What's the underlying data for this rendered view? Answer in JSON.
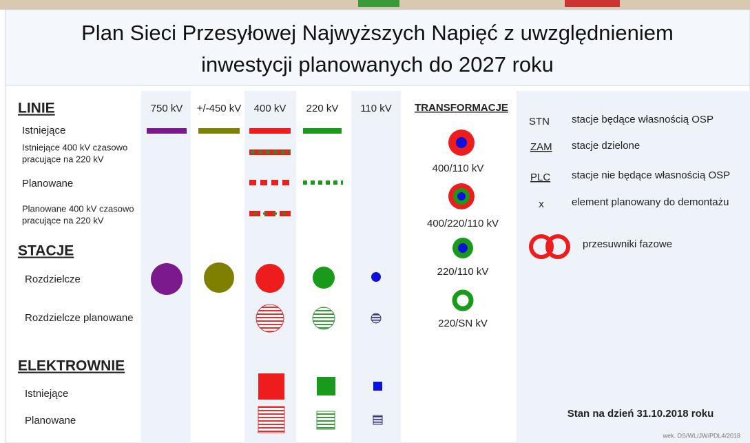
{
  "title_lines": [
    "Plan Sieci Przesyłowej Najwyższych Napięć z uwzględnieniem",
    "inwestycji planowanych do 2027 roku"
  ],
  "voltages": [
    "750 kV",
    "+/-450 kV",
    "400 kV",
    "220 kV",
    "110 kV"
  ],
  "lines": {
    "heading": "LINIE",
    "rows": [
      [
        "Istniejące"
      ],
      [
        "Istniejące 400 kV czasowo",
        "pracujące na 220 kV"
      ],
      [
        "Planowane"
      ],
      [
        "Planowane 400 kV czasowo",
        "pracujące na 220 kV"
      ]
    ]
  },
  "stations": {
    "heading": "STACJE",
    "rows": [
      "Rozdzielcze",
      "Rozdzielcze planowane"
    ]
  },
  "power_plants": {
    "heading": "ELEKTROWNIE",
    "rows": [
      "Istniejące",
      "Planowane"
    ]
  },
  "transformations": {
    "heading": "TRANSFORMACJE",
    "items": [
      "400/110 kV",
      "400/220/110 kV",
      "220/110 kV",
      "220/SN kV"
    ]
  },
  "abbreviations": [
    {
      "code": "STN",
      "text": "stacje będące własnością OSP"
    },
    {
      "code": "ZAM",
      "text": "stacje dzielone"
    },
    {
      "code": "PLC",
      "text": "stacje nie będące własnością OSP"
    },
    {
      "code": "x",
      "text": "element planowany do demontażu"
    }
  ],
  "phase_shifters": "przesuwniki fazowe",
  "status": "Stan na dzień 31.10.2018 roku",
  "code": "wek. DS/WL/JW/PDL4/2018"
}
